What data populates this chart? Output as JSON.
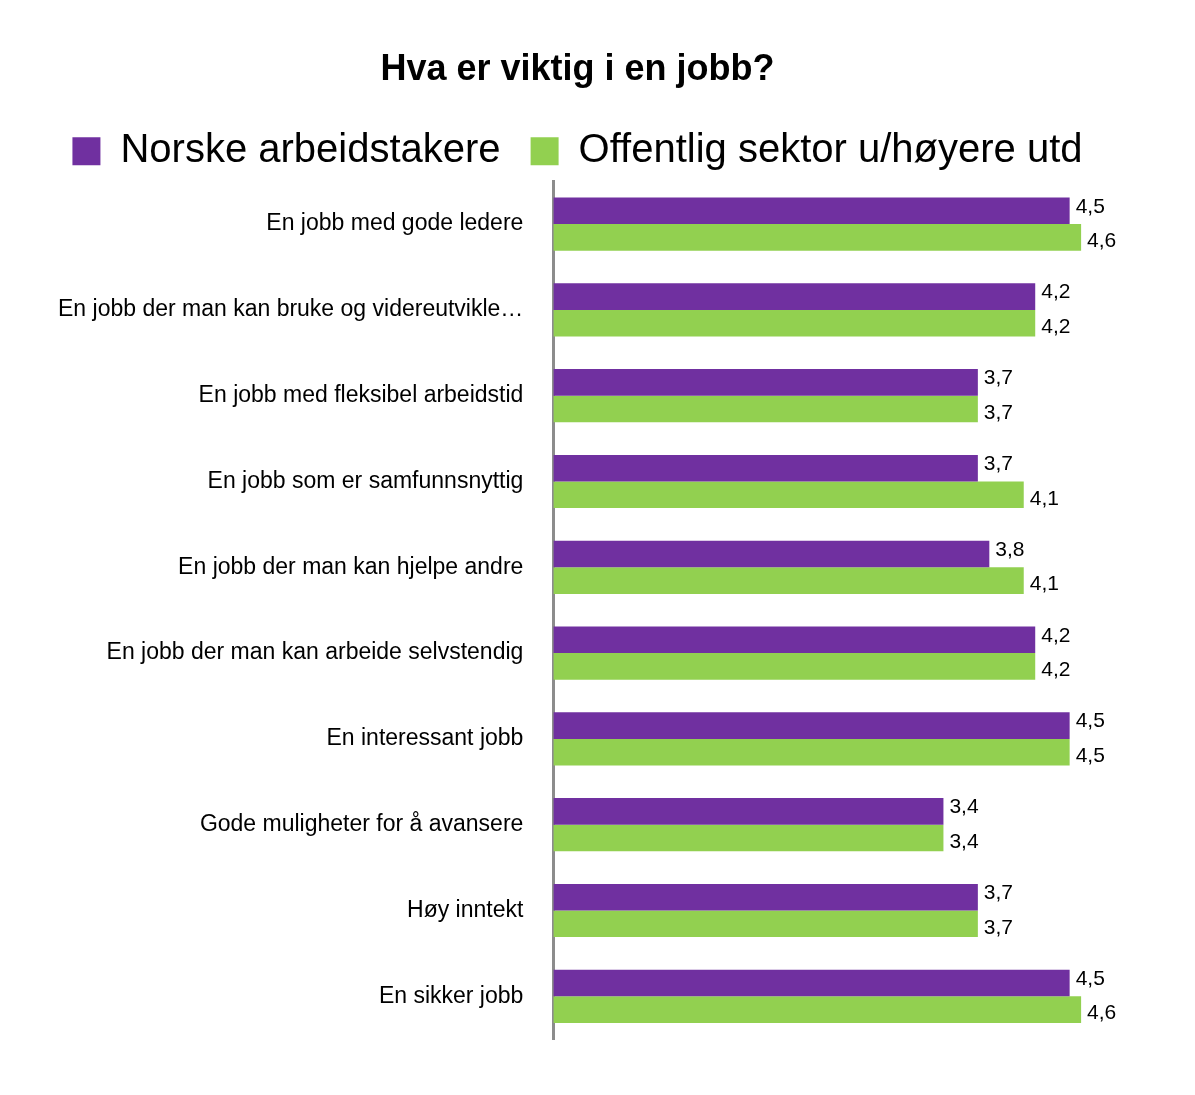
{
  "chart_data": {
    "type": "bar",
    "orientation": "horizontal",
    "title": "Hva er viktig i en jobb?",
    "categories": [
      "En jobb med gode ledere",
      "En jobb der man kan bruke og videreutvikle…",
      "En jobb med fleksibel arbeidstid",
      "En jobb som er samfunnsnyttig",
      "En jobb der man kan hjelpe andre",
      "En jobb der man kan arbeide selvstendig",
      "En interessant jobb",
      "Gode muligheter for å avansere",
      "Høy inntekt",
      "En sikker jobb"
    ],
    "series": [
      {
        "name": "Norske arbeidstakere",
        "color": "#7030a0",
        "values": [
          4.5,
          4.2,
          3.7,
          3.7,
          3.8,
          4.2,
          4.5,
          3.4,
          3.7,
          4.5
        ],
        "value_labels": [
          "4,5",
          "4,2",
          "3,7",
          "3,7",
          "3,8",
          "4,2",
          "4,5",
          "3,4",
          "3,7",
          "4,5"
        ]
      },
      {
        "name": "Offentlig sektor u/høyere utd",
        "color": "#92d050",
        "values": [
          4.6,
          4.2,
          3.7,
          4.1,
          4.1,
          4.2,
          4.5,
          3.4,
          3.7,
          4.6
        ],
        "value_labels": [
          "4,6",
          "4,2",
          "3,7",
          "4,1",
          "4,1",
          "4,2",
          "4,5",
          "3,4",
          "3,7",
          "4,6"
        ]
      }
    ],
    "tick_labels": "y",
    "grid": false,
    "legend": "top"
  }
}
